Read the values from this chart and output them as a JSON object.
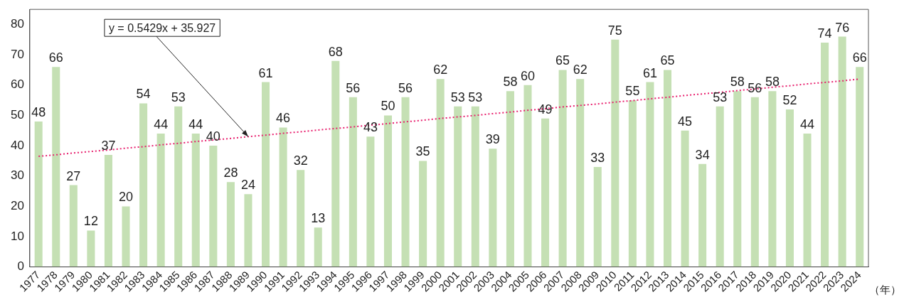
{
  "chart_data": {
    "type": "bar",
    "xlabel": "（年）",
    "categories": [
      "1977",
      "1978",
      "1979",
      "1980",
      "1981",
      "1982",
      "1983",
      "1984",
      "1985",
      "1986",
      "1987",
      "1988",
      "1989",
      "1990",
      "1991",
      "1992",
      "1993",
      "1994",
      "1995",
      "1996",
      "1997",
      "1998",
      "1999",
      "2000",
      "2001",
      "2002",
      "2003",
      "2004",
      "2005",
      "2006",
      "2007",
      "2008",
      "2009",
      "2010",
      "2011",
      "2012",
      "2013",
      "2014",
      "2015",
      "2016",
      "2017",
      "2018",
      "2019",
      "2020",
      "2021",
      "2022",
      "2023",
      "2024"
    ],
    "series": [
      {
        "color": "#c5e0b4",
        "values": [
          48,
          66,
          27,
          12,
          37,
          20,
          54,
          44,
          53,
          44,
          40,
          28,
          24,
          61,
          46,
          32,
          13,
          68,
          56,
          43,
          50,
          56,
          35,
          62,
          53,
          53,
          39,
          58,
          60,
          49,
          65,
          62,
          33,
          75,
          55,
          61,
          65,
          45,
          34,
          53,
          58,
          56,
          58,
          52,
          44,
          74,
          76,
          66
        ],
        "value_labels": [
          "48",
          "66",
          "27",
          "12",
          "37",
          "20",
          "54",
          "44",
          "53",
          "44",
          "40",
          "28",
          "24",
          "61",
          "46",
          "32",
          "13",
          "68",
          "56",
          "43",
          "50",
          "56",
          "35",
          "62",
          "53",
          "53",
          "39",
          "58",
          "60",
          "49",
          "65",
          "62",
          "33",
          "75",
          "55",
          "61",
          "65",
          "45",
          "34",
          "53",
          "58",
          "56",
          "58",
          "52",
          "44",
          "74",
          "76",
          "66"
        ]
      },
      {
        "type": "line",
        "color": "#e8206e",
        "values": [
          36.5,
          37.0,
          37.6,
          38.1,
          38.6,
          39.2,
          39.7,
          40.3,
          40.8,
          41.4,
          41.9,
          42.4,
          43.0,
          43.5,
          44.1,
          44.6,
          45.2,
          45.7,
          46.2,
          46.8,
          47.3,
          47.9,
          48.4,
          49.0,
          49.5,
          50.0,
          50.6,
          51.1,
          51.7,
          52.2,
          52.8,
          53.3,
          53.8,
          54.4,
          54.9,
          55.5,
          56.0,
          56.6,
          57.1,
          57.6,
          58.2,
          58.7,
          59.3,
          59.8,
          60.4,
          60.9,
          61.4,
          62.0
        ],
        "line_style": "dotted",
        "marker": "none"
      }
    ],
    "ylim": [
      0,
      85
    ],
    "yticks": [
      0,
      10,
      20,
      30,
      40,
      50,
      60,
      70,
      80
    ],
    "grid": false,
    "legend": false,
    "annotations": [
      {
        "text": "y = 0.5429x + 35.927",
        "x": "1989",
        "y": 43
      }
    ]
  }
}
